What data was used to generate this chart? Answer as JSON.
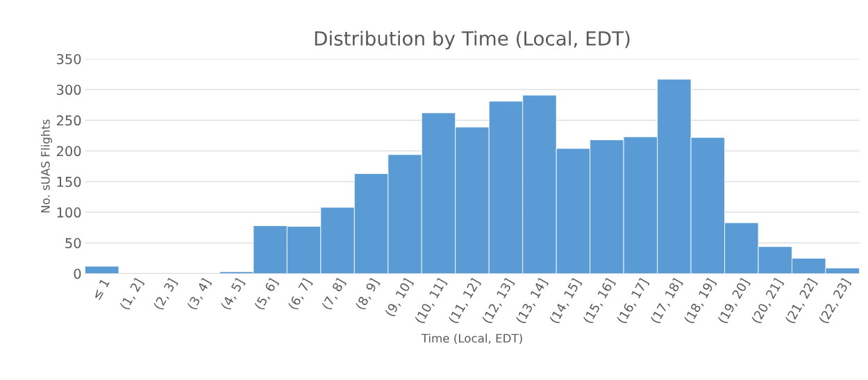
{
  "chart_data": {
    "type": "bar",
    "title": "Distribution by Time (Local, EDT)",
    "xlabel": "Time (Local, EDT)",
    "ylabel": "No. sUAS Flights",
    "categories": [
      "≤ 1",
      "(1, 2]",
      "(2, 3]",
      "(3, 4]",
      "(4, 5]",
      "(5, 6]",
      "(6, 7]",
      "(7, 8]",
      "(8, 9]",
      "(9, 10]",
      "(10, 11]",
      "(11, 12]",
      "(12, 13]",
      "(13, 14]",
      "(14, 15]",
      "(15, 16]",
      "(16, 17]",
      "(17, 18]",
      "(18, 19]",
      "(19, 20]",
      "(20, 21]",
      "(21, 22]",
      "(22, 23]"
    ],
    "values": [
      12,
      0,
      0,
      0,
      3,
      78,
      77,
      108,
      163,
      194,
      262,
      239,
      281,
      291,
      204,
      218,
      223,
      317,
      222,
      83,
      44,
      25,
      9
    ],
    "color": "#5b9bd5",
    "ylim": [
      0,
      350
    ],
    "yticks": [
      0,
      50,
      100,
      150,
      200,
      250,
      300,
      350
    ],
    "grid": "y",
    "legend": false
  }
}
